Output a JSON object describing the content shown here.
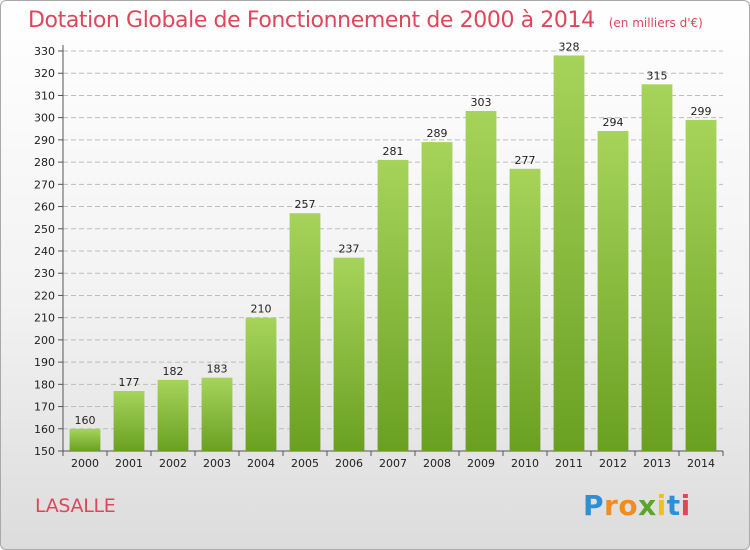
{
  "title": "Dotation Globale de Fonctionnement de 2000 à 2014",
  "subtitle": "(en milliers d'€)",
  "commune": "LASALLE",
  "logo": {
    "letters": [
      "P",
      "r",
      "o",
      "x",
      "i",
      "t",
      "i"
    ],
    "colors": [
      "#2e8fd4",
      "#f28c1e",
      "#f28c1e",
      "#5aa52a",
      "#f2c01e",
      "#2e8fd4",
      "#e0455b"
    ]
  },
  "colors": {
    "title": "#e0455b",
    "bar_light": "#a6d45a",
    "bar_dark": "#6aa022"
  },
  "chart_data": {
    "type": "bar",
    "title": "Dotation Globale de Fonctionnement de 2000 à 2014",
    "subtitle": "(en milliers d'€)",
    "categories": [
      "2000",
      "2001",
      "2002",
      "2003",
      "2004",
      "2005",
      "2006",
      "2007",
      "2008",
      "2009",
      "2010",
      "2011",
      "2012",
      "2013",
      "2014"
    ],
    "values": [
      160,
      177,
      182,
      183,
      210,
      257,
      237,
      281,
      289,
      303,
      277,
      328,
      294,
      315,
      299
    ],
    "xlabel": "",
    "ylabel": "",
    "ylim": [
      150,
      330
    ],
    "yticks": [
      150,
      160,
      170,
      180,
      190,
      200,
      210,
      220,
      230,
      240,
      250,
      260,
      270,
      280,
      290,
      300,
      310,
      320,
      330
    ],
    "grid": true,
    "data_labels": true
  }
}
